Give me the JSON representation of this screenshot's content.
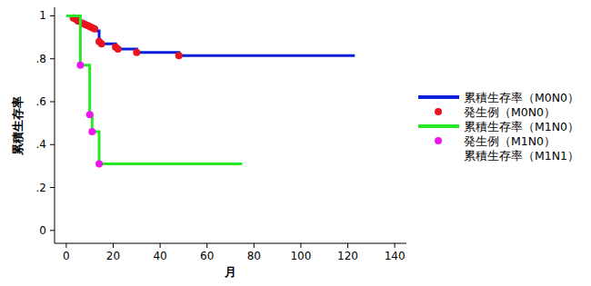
{
  "chart_data": {
    "type": "line",
    "x_label": "月",
    "y_label": "累積生存率",
    "xlim": [
      -5,
      145
    ],
    "ylim": [
      -0.06,
      1.04
    ],
    "xticks": [
      0,
      20,
      40,
      60,
      80,
      100,
      120,
      140
    ],
    "yticks": [
      0,
      {
        "value": 0.2,
        "label": ".2"
      },
      {
        "value": 0.4,
        "label": ".4"
      },
      {
        "value": 0.6,
        "label": ".6"
      },
      {
        "value": 0.8,
        "label": ".8"
      },
      1
    ],
    "legend": "right",
    "series": [
      {
        "name": "累積生存率（M0N0）",
        "type": "line",
        "line_style": "step",
        "color": "#0a1edc",
        "x": [
          0,
          3,
          4,
          5,
          7,
          8,
          9,
          10,
          11,
          12,
          13,
          14,
          15,
          21,
          22,
          30,
          48,
          123
        ],
        "values": [
          1,
          0.99,
          0.985,
          0.975,
          0.965,
          0.96,
          0.955,
          0.95,
          0.945,
          0.94,
          0.93,
          0.88,
          0.87,
          0.855,
          0.845,
          0.83,
          0.815,
          0.815
        ]
      },
      {
        "name": "発生例（M0N0）",
        "type": "scatter",
        "marker": "circle",
        "color": "#e8141e",
        "x": [
          3,
          4,
          5,
          7,
          8,
          9,
          10,
          11,
          12,
          14,
          15,
          21,
          22,
          30,
          48
        ],
        "values": [
          0.99,
          0.985,
          0.975,
          0.965,
          0.96,
          0.955,
          0.95,
          0.945,
          0.94,
          0.88,
          0.87,
          0.855,
          0.845,
          0.83,
          0.815
        ]
      },
      {
        "name": "累積生存率（M1N0）",
        "type": "line",
        "line_style": "step",
        "color": "#28e628",
        "x": [
          0,
          6,
          10,
          11,
          14,
          75
        ],
        "values": [
          1,
          0.77,
          0.54,
          0.46,
          0.31,
          0.31
        ]
      },
      {
        "name": "発生例（M1N0）",
        "type": "scatter",
        "marker": "circle",
        "color": "#f014f0",
        "x": [
          6,
          10,
          11,
          14
        ],
        "values": [
          0.77,
          0.54,
          0.46,
          0.31
        ]
      },
      {
        "name": "累積生存率（M1N1）",
        "type": "line",
        "line_style": "step",
        "x": [],
        "values": []
      }
    ]
  }
}
